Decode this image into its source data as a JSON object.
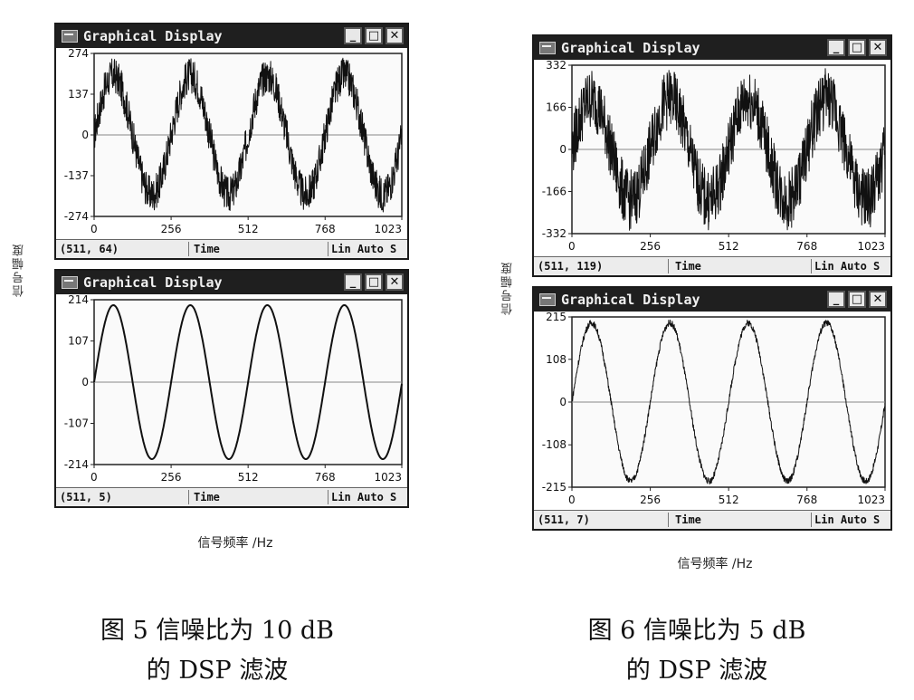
{
  "figures": [
    {
      "id": "fig5",
      "ylabel": "信号幅度",
      "xlabel": "信号频率 /Hz",
      "caption_line1": "图 5 信噪比为 10 dB",
      "caption_line2": "的 DSP 滤波",
      "windows": [
        {
          "title": "Graphical Display",
          "status": {
            "coords": "(511, 64)",
            "xname": "Time",
            "mode": "Lin Auto S"
          },
          "chart_data": {
            "type": "line",
            "xlim": [
              0,
              1023
            ],
            "ylim": [
              -274,
              274
            ],
            "x_ticks": [
              "0",
              "256",
              "512",
              "768",
              "1023"
            ],
            "y_ticks": [
              "274",
              "137",
              "0",
              "-137",
              "-274"
            ],
            "signal": {
              "amplitude": 200,
              "cycles": 4,
              "noise_amplitude": 60
            }
          }
        },
        {
          "title": "Graphical Display",
          "status": {
            "coords": "(511, 5)",
            "xname": "Time",
            "mode": "Lin Auto S"
          },
          "chart_data": {
            "type": "line",
            "xlim": [
              0,
              1023
            ],
            "ylim": [
              -214,
              214
            ],
            "x_ticks": [
              "0",
              "256",
              "512",
              "768",
              "1023"
            ],
            "y_ticks": [
              "214",
              "107",
              "0",
              "-107",
              "-214"
            ],
            "signal": {
              "amplitude": 200,
              "cycles": 4,
              "noise_amplitude": 0
            }
          }
        }
      ]
    },
    {
      "id": "fig6",
      "ylabel": "信号幅度",
      "xlabel": "信号频率 /Hz",
      "caption_line1": "图 6 信噪比为 5 dB",
      "caption_line2": "的 DSP 滤波",
      "windows": [
        {
          "title": "Graphical Display",
          "status": {
            "coords": "(511, 119)",
            "xname": "Time",
            "mode": "Lin Auto S"
          },
          "chart_data": {
            "type": "line",
            "xlim": [
              0,
              1023
            ],
            "ylim": [
              -332,
              332
            ],
            "x_ticks": [
              "0",
              "256",
              "512",
              "768",
              "1023"
            ],
            "y_ticks": [
              "332",
              "166",
              "0",
              "-166",
              "-332"
            ],
            "signal": {
              "amplitude": 200,
              "cycles": 4,
              "noise_amplitude": 120
            }
          }
        },
        {
          "title": "Graphical Display",
          "status": {
            "coords": "(511, 7)",
            "xname": "Time",
            "mode": "Lin Auto S"
          },
          "chart_data": {
            "type": "line",
            "xlim": [
              0,
              1023
            ],
            "ylim": [
              -215,
              215
            ],
            "x_ticks": [
              "0",
              "256",
              "512",
              "768",
              "1023"
            ],
            "y_ticks": [
              "215",
              "108",
              "0",
              "-108",
              "-215"
            ],
            "signal": {
              "amplitude": 200,
              "cycles": 4,
              "noise_amplitude": 8
            }
          }
        }
      ]
    }
  ]
}
